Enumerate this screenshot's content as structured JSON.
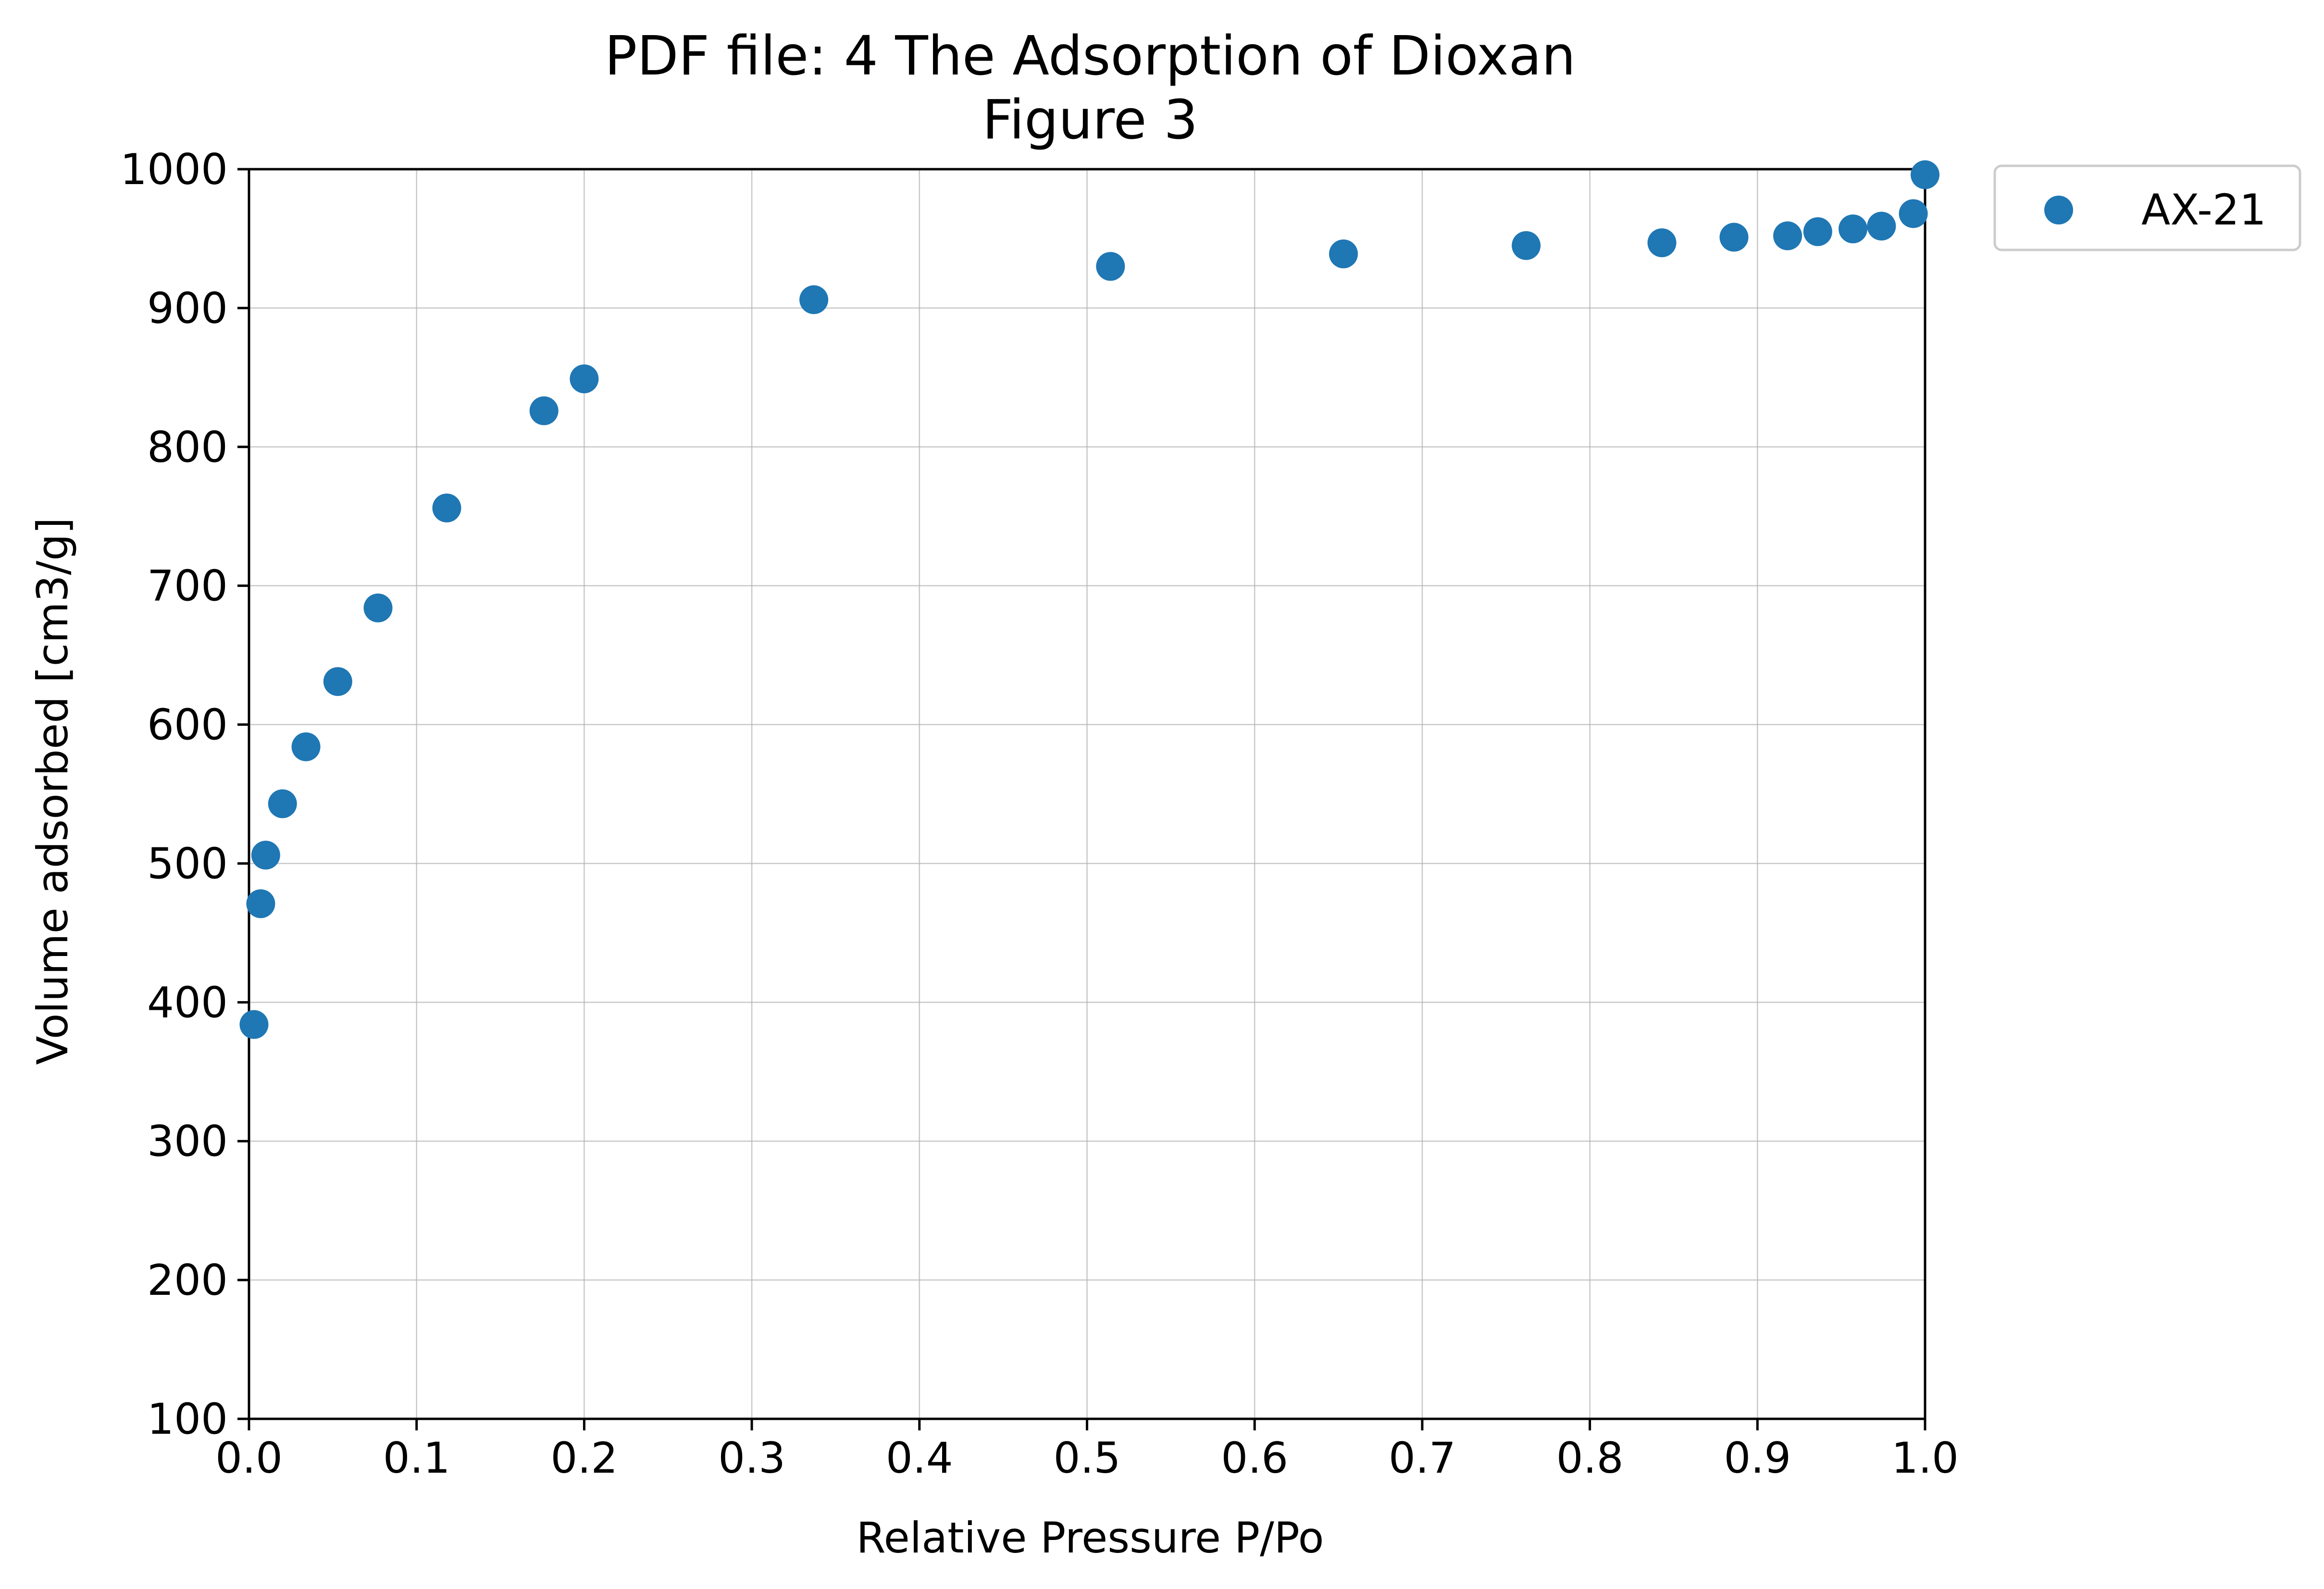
{
  "chart_data": {
    "type": "scatter",
    "title": "PDF file: 4 The Adsorption of Dioxan",
    "subtitle": "Figure 3",
    "xlabel": "Relative Pressure P/Po",
    "ylabel": "Volume adsorbed [cm3/g]",
    "xlim": [
      0.0,
      1.0
    ],
    "ylim": [
      100,
      1000
    ],
    "xticks": [
      "0.0",
      "0.1",
      "0.2",
      "0.3",
      "0.4",
      "0.5",
      "0.6",
      "0.7",
      "0.8",
      "0.9",
      "1.0"
    ],
    "yticks": [
      "100",
      "200",
      "300",
      "400",
      "500",
      "600",
      "700",
      "800",
      "900",
      "1000"
    ],
    "grid": true,
    "legend_position": "outside-top-right",
    "series": [
      {
        "name": "AX-21",
        "color": "#1f77b4",
        "marker": "circle",
        "x": [
          0.003,
          0.007,
          0.01,
          0.02,
          0.034,
          0.053,
          0.077,
          0.118,
          0.176,
          0.2,
          0.337,
          0.514,
          0.653,
          0.762,
          0.843,
          0.886,
          0.918,
          0.936,
          0.957,
          0.974,
          0.993,
          1.0
        ],
        "y": [
          384,
          471,
          506,
          543,
          584,
          631,
          684,
          756,
          826,
          849,
          906,
          930,
          939,
          945,
          947,
          951,
          952,
          955,
          957,
          959,
          968,
          996
        ]
      }
    ]
  }
}
